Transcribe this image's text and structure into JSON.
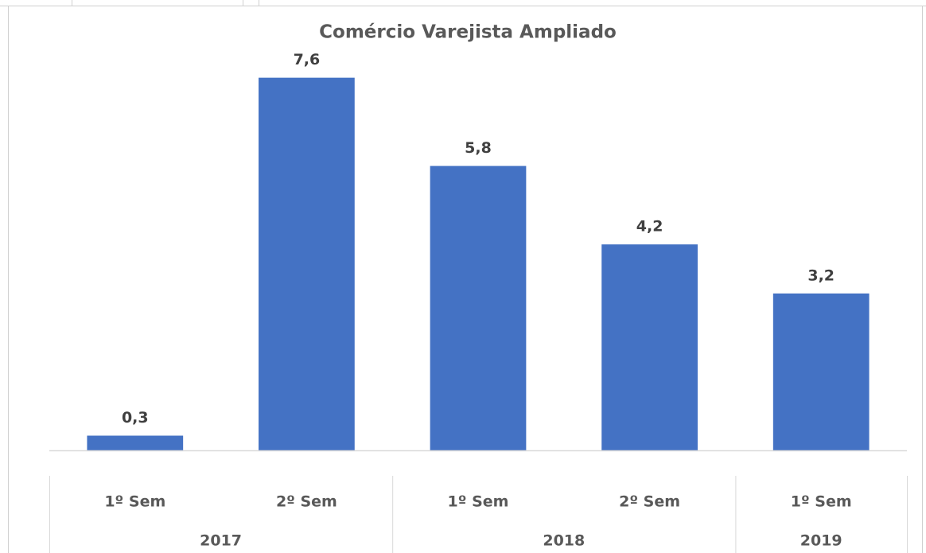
{
  "chart_data": {
    "type": "bar",
    "title": "Comércio Varejista Ampliado",
    "categories": [
      "1º Sem",
      "2º Sem",
      "1º Sem",
      "2º Sem",
      "1º Sem"
    ],
    "groups": [
      {
        "label": "2017",
        "size": 2
      },
      {
        "label": "2018",
        "size": 2
      },
      {
        "label": "2019",
        "size": 1
      }
    ],
    "values": [
      0.3,
      7.6,
      5.8,
      4.2,
      3.2
    ],
    "value_labels": [
      "0,3",
      "7,6",
      "5,8",
      "4,2",
      "3,2"
    ],
    "color": "#4472c4",
    "ylim": [
      0,
      8
    ]
  }
}
